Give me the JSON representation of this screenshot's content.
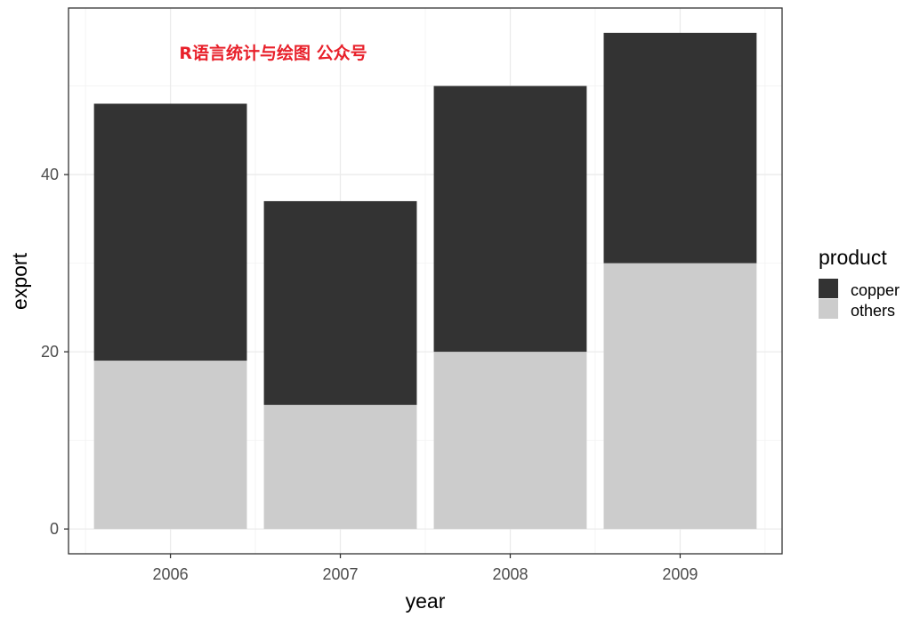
{
  "chart_data": {
    "type": "bar",
    "stacked": true,
    "categories": [
      "2006",
      "2007",
      "2008",
      "2009"
    ],
    "series": [
      {
        "name": "copper",
        "values": [
          29,
          23,
          30,
          26
        ],
        "color": "#333333"
      },
      {
        "name": "others",
        "values": [
          19,
          14,
          20,
          30
        ],
        "color": "#cccccc"
      }
    ],
    "xlabel": "year",
    "ylabel": "export",
    "ylim": [
      -2.8,
      58.8
    ],
    "yticks": [
      0,
      20,
      40
    ],
    "grid": true,
    "legend": {
      "title": "product",
      "position": "right"
    },
    "annotation": {
      "text": "R语言统计与绘图 公众号",
      "color": "#e8202a"
    }
  }
}
